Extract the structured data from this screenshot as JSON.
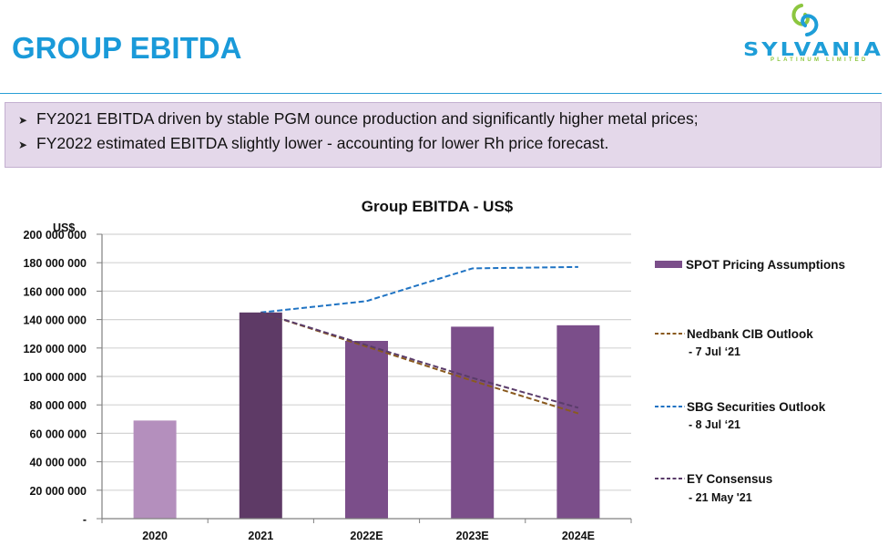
{
  "header": {
    "title": "GROUP EBITDA",
    "logo_name": "SYLVANIA",
    "logo_sub": "PLATINUM LIMITED"
  },
  "bullets": [
    "FY2021 EBITDA driven by stable PGM ounce production and significantly higher metal prices;",
    "FY2022 estimated EBITDA slightly lower - accounting for lower Rh price forecast."
  ],
  "colors": {
    "title_blue": "#1a9ad9",
    "bar_2020": "#b48fbd",
    "bar_2021": "#5e3a66",
    "bar_estimate": "#7b4e8a",
    "nedbank": "#8a5a1e",
    "sbg": "#1f73c3",
    "ey": "#5a3c6a"
  },
  "chart_data": {
    "type": "bar",
    "title": "Group EBITDA - US$",
    "xlabel": "",
    "ylabel": "US$",
    "ylim": [
      0,
      200000000
    ],
    "yticks": [
      0,
      20000000,
      40000000,
      60000000,
      80000000,
      100000000,
      120000000,
      140000000,
      160000000,
      180000000,
      200000000
    ],
    "ytick_labels": [
      "-",
      "20 000 000",
      "40 000 000",
      "60 000 000",
      "80 000 000",
      "100 000 000",
      "120 000 000",
      "140 000 000",
      "160 000 000",
      "180 000 000",
      "200 000 000"
    ],
    "grid": true,
    "legend_position": "right",
    "categories": [
      "2020",
      "2021",
      "2022E",
      "2023E",
      "2024E"
    ],
    "bars": {
      "name": "SPOT Pricing Assumptions",
      "values": [
        69000000,
        145000000,
        125000000,
        135000000,
        136000000
      ],
      "colors": [
        "#b48fbd",
        "#5e3a66",
        "#7b4e8a",
        "#7b4e8a",
        "#7b4e8a"
      ]
    },
    "series": [
      {
        "name": "Nedbank CIB Outlook",
        "sub": "- 7 Jul ‘21",
        "type": "line-dashed",
        "color": "#8a5a1e",
        "categories": [
          "2021",
          "2022E",
          "2023E",
          "2024E"
        ],
        "values": [
          145000000,
          121000000,
          97000000,
          74000000
        ]
      },
      {
        "name": "SBG Securities Outlook",
        "sub": "- 8 Jul ‘21",
        "type": "line-dashed",
        "color": "#1f73c3",
        "categories": [
          "2021",
          "2022E",
          "2023E",
          "2024E"
        ],
        "values": [
          145000000,
          153000000,
          176000000,
          177000000
        ]
      },
      {
        "name": "EY Consensus",
        "sub": "- 21 May '21",
        "type": "line-dashed",
        "color": "#5a3c6a",
        "categories": [
          "2021",
          "2022E",
          "2023E",
          "2024E"
        ],
        "values": [
          145000000,
          122000000,
          99000000,
          78000000
        ]
      }
    ]
  }
}
